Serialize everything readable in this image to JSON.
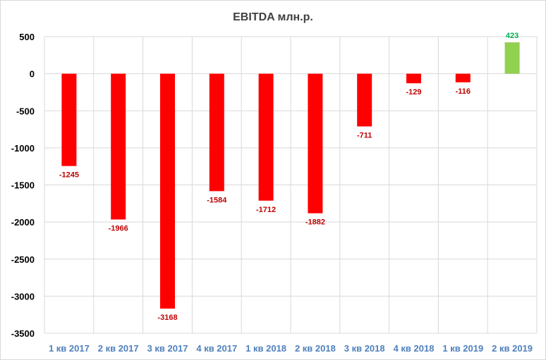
{
  "chart_data": {
    "type": "bar",
    "title": "EBITDA млн.р.",
    "xlabel": "",
    "ylabel": "",
    "categories": [
      "1 кв 2017",
      "2 кв 2017",
      "3 кв 2017",
      "4 кв 2017",
      "1 кв 2018",
      "2 кв 2018",
      "3 кв 2018",
      "4 кв 2018",
      "1 кв 2019",
      "2 кв 2019"
    ],
    "values": [
      -1245,
      -1966,
      -3168,
      -1584,
      -1712,
      -1882,
      -711,
      -129,
      -116,
      423
    ],
    "data_labels": [
      "-1245",
      "-1966",
      "-3168",
      "-1584",
      "-1712",
      "-1882",
      "-711",
      "-129",
      "-116",
      "423"
    ],
    "ylim": [
      -3500,
      500
    ],
    "yticks": [
      500,
      0,
      -500,
      -1000,
      -1500,
      -2000,
      -2500,
      -3000,
      -3500
    ],
    "ytick_labels": [
      "500",
      "0",
      "-500",
      "-1000",
      "-1500",
      "-2000",
      "-2500",
      "-3000",
      "-3500"
    ],
    "grid": true,
    "legend": "none",
    "colors": {
      "negative": "#ff0000",
      "positive": "#92d050",
      "negative_label": "#c00000",
      "positive_label": "#00b050",
      "category_label": "#4f81bd",
      "gridline": "#d9d9d9"
    }
  }
}
